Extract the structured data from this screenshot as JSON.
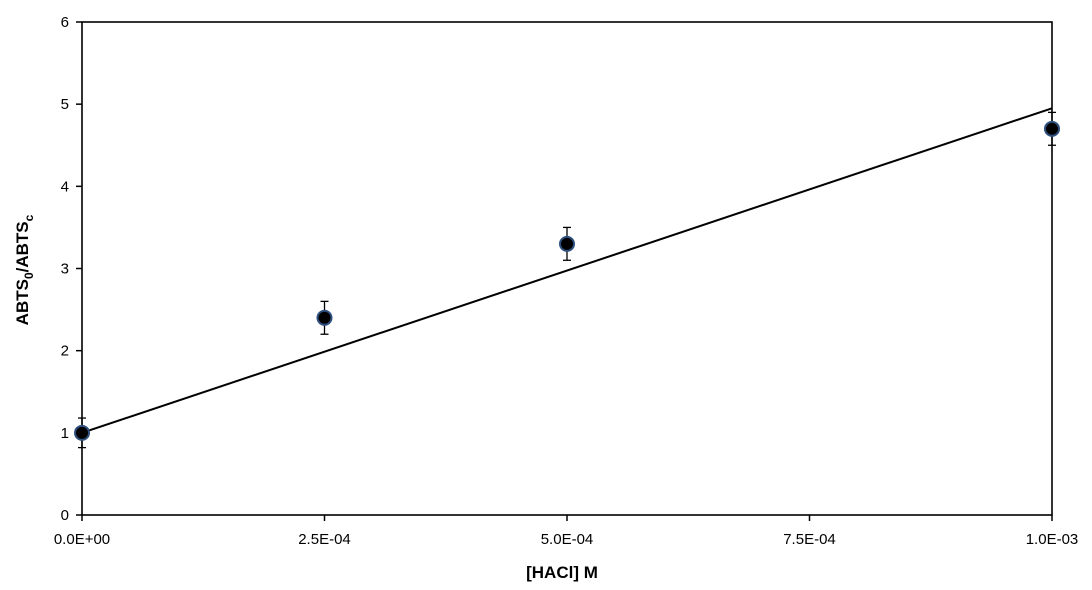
{
  "chart_data": {
    "type": "scatter",
    "title": "",
    "xlabel": "[HACl] M",
    "ylabel": {
      "main": "ABTS",
      "sub1": "0",
      "sep": "/ABTS",
      "sub2": "c"
    },
    "xlim": [
      0,
      0.001
    ],
    "ylim": [
      0,
      6
    ],
    "x_ticks": [
      0,
      0.00025,
      0.0005,
      0.00075,
      0.001
    ],
    "x_tick_labels": [
      "0.0E+00",
      "2.5E-04",
      "5.0E-04",
      "7.5E-04",
      "1.0E-03"
    ],
    "y_ticks": [
      0,
      1,
      2,
      3,
      4,
      5,
      6
    ],
    "y_tick_labels": [
      "0",
      "1",
      "2",
      "3",
      "4",
      "5",
      "6"
    ],
    "grid": false,
    "legend": "none",
    "series": [
      {
        "points": [
          {
            "x": 0,
            "y": 1.0,
            "err": 0.18
          },
          {
            "x": 0.00025,
            "y": 2.4,
            "err": 0.2
          },
          {
            "x": 0.0005,
            "y": 3.3,
            "err": 0.2
          },
          {
            "x": 0.001,
            "y": 4.7,
            "err": 0.2
          }
        ],
        "marker_color": "#000000",
        "marker_edge": "#2f4f7f"
      }
    ],
    "trendline": {
      "type": "linear",
      "x": [
        0,
        0.001
      ],
      "y": [
        1.0,
        4.95
      ],
      "color": "#000000"
    }
  }
}
